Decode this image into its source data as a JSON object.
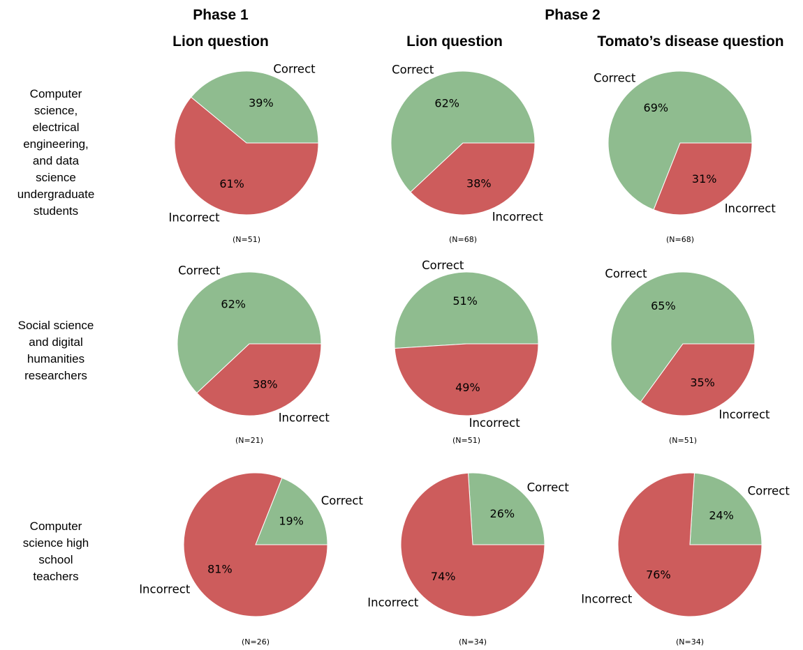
{
  "headers": {
    "phase1": "Phase 1",
    "phase2": "Phase 2",
    "questions": [
      "Lion question",
      "Lion question",
      "Tomato’s disease question"
    ]
  },
  "rows": [
    [
      "Computer",
      "science,",
      "electrical",
      "engineering,",
      "and data",
      "science",
      "undergraduate",
      "students"
    ],
    [
      "Social science",
      "and digital",
      "humanities",
      "researchers"
    ],
    [
      "Computer",
      "science high",
      "school",
      "teachers"
    ]
  ],
  "colors": {
    "correct": "#8fbc8f",
    "incorrect": "#cd5c5c"
  },
  "chart_data": [
    {
      "type": "pie",
      "row": 0,
      "col": 0,
      "categories": [
        "Correct",
        "Incorrect"
      ],
      "values": [
        39,
        61
      ],
      "value_labels": [
        "39%",
        "61%"
      ],
      "n_label": "(N=51)"
    },
    {
      "type": "pie",
      "row": 0,
      "col": 1,
      "categories": [
        "Correct",
        "Incorrect"
      ],
      "values": [
        62,
        38
      ],
      "value_labels": [
        "62%",
        "38%"
      ],
      "n_label": "(N=68)"
    },
    {
      "type": "pie",
      "row": 0,
      "col": 2,
      "categories": [
        "Correct",
        "Incorrect"
      ],
      "values": [
        69,
        31
      ],
      "value_labels": [
        "69%",
        "31%"
      ],
      "n_label": "(N=68)"
    },
    {
      "type": "pie",
      "row": 1,
      "col": 0,
      "categories": [
        "Correct",
        "Incorrect"
      ],
      "values": [
        62,
        38
      ],
      "value_labels": [
        "62%",
        "38%"
      ],
      "n_label": "(N=21)"
    },
    {
      "type": "pie",
      "row": 1,
      "col": 1,
      "categories": [
        "Correct",
        "Incorrect"
      ],
      "values": [
        51,
        49
      ],
      "value_labels": [
        "51%",
        "49%"
      ],
      "n_label": "(N=51)"
    },
    {
      "type": "pie",
      "row": 1,
      "col": 2,
      "categories": [
        "Correct",
        "Incorrect"
      ],
      "values": [
        65,
        35
      ],
      "value_labels": [
        "65%",
        "35%"
      ],
      "n_label": "(N=51)"
    },
    {
      "type": "pie",
      "row": 2,
      "col": 0,
      "categories": [
        "Correct",
        "Incorrect"
      ],
      "values": [
        19,
        81
      ],
      "value_labels": [
        "19%",
        "81%"
      ],
      "n_label": "(N=26)"
    },
    {
      "type": "pie",
      "row": 2,
      "col": 1,
      "categories": [
        "Correct",
        "Incorrect"
      ],
      "values": [
        26,
        74
      ],
      "value_labels": [
        "26%",
        "74%"
      ],
      "n_label": "(N=34)"
    },
    {
      "type": "pie",
      "row": 2,
      "col": 2,
      "categories": [
        "Correct",
        "Incorrect"
      ],
      "values": [
        24,
        76
      ],
      "value_labels": [
        "24%",
        "76%"
      ],
      "n_label": "(N=34)"
    }
  ]
}
